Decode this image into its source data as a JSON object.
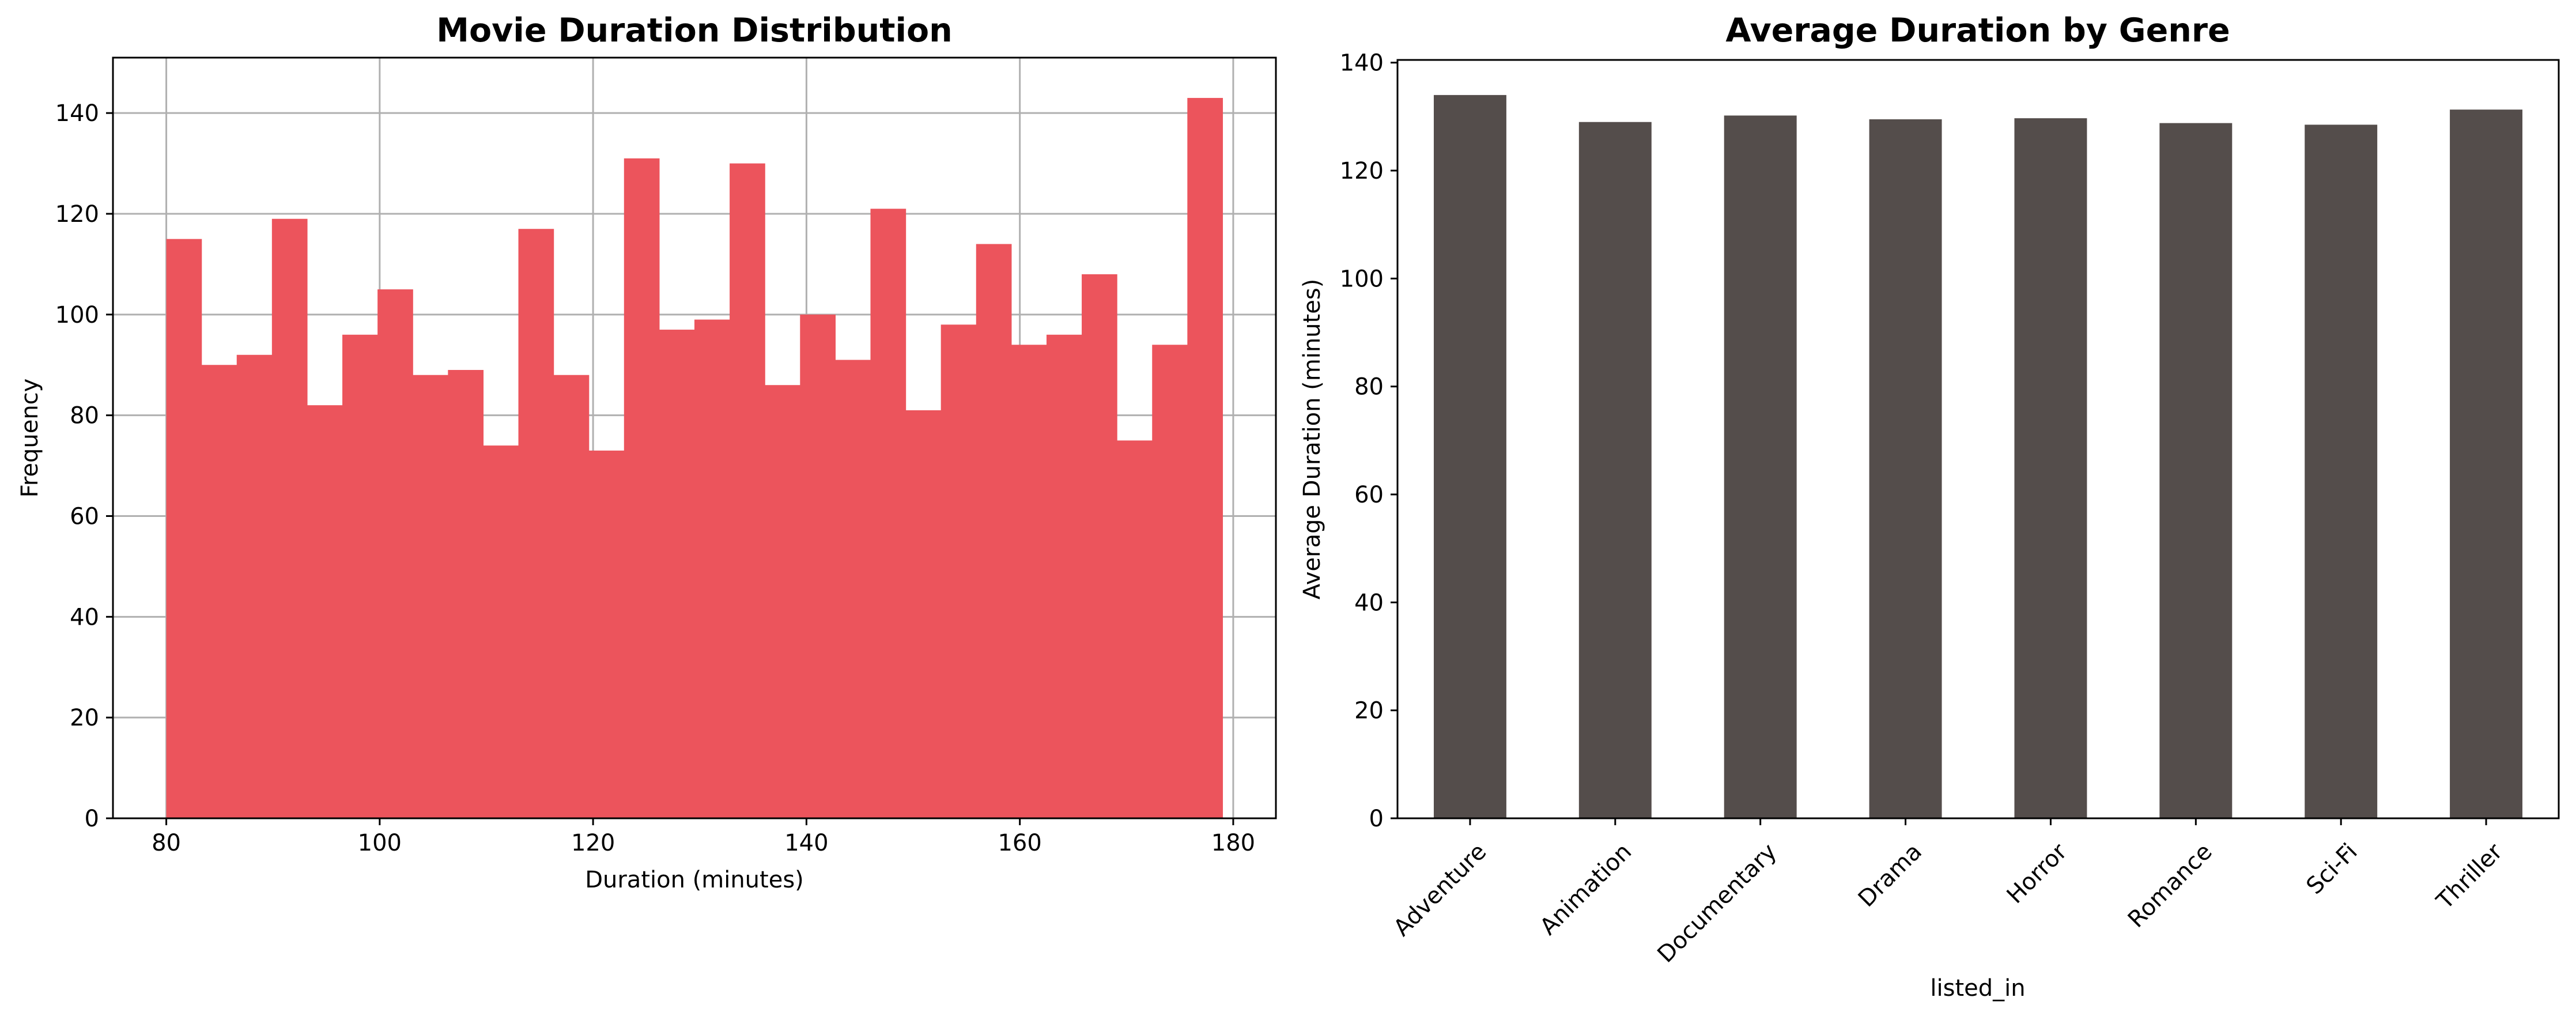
{
  "chart_data": [
    {
      "type": "bar",
      "title": "Movie Duration Distribution",
      "xlabel": "Duration (minutes)",
      "ylabel": "Frequency",
      "xlim": [
        75,
        184
      ],
      "ylim": [
        0,
        151
      ],
      "xticks": [
        80,
        100,
        120,
        140,
        160,
        180
      ],
      "yticks": [
        0,
        20,
        40,
        60,
        80,
        100,
        120,
        140
      ],
      "grid": true,
      "color": "#ec545c",
      "bins": [
        {
          "x0": 80.0,
          "x1": 83.3,
          "value": 115
        },
        {
          "x0": 83.3,
          "x1": 86.6,
          "value": 90
        },
        {
          "x0": 86.6,
          "x1": 89.9,
          "value": 92
        },
        {
          "x0": 89.9,
          "x1": 93.2,
          "value": 119
        },
        {
          "x0": 93.2,
          "x1": 96.5,
          "value": 82
        },
        {
          "x0": 96.5,
          "x1": 99.8,
          "value": 96
        },
        {
          "x0": 99.8,
          "x1": 103.1,
          "value": 105
        },
        {
          "x0": 103.1,
          "x1": 106.4,
          "value": 88
        },
        {
          "x0": 106.4,
          "x1": 109.7,
          "value": 89
        },
        {
          "x0": 109.7,
          "x1": 113.0,
          "value": 74
        },
        {
          "x0": 113.0,
          "x1": 116.3,
          "value": 117
        },
        {
          "x0": 116.3,
          "x1": 119.6,
          "value": 88
        },
        {
          "x0": 119.6,
          "x1": 122.9,
          "value": 73
        },
        {
          "x0": 122.9,
          "x1": 126.2,
          "value": 131
        },
        {
          "x0": 126.2,
          "x1": 129.5,
          "value": 97
        },
        {
          "x0": 129.5,
          "x1": 132.8,
          "value": 99
        },
        {
          "x0": 132.8,
          "x1": 136.1,
          "value": 130
        },
        {
          "x0": 136.1,
          "x1": 139.4,
          "value": 86
        },
        {
          "x0": 139.4,
          "x1": 142.7,
          "value": 100
        },
        {
          "x0": 142.7,
          "x1": 146.0,
          "value": 91
        },
        {
          "x0": 146.0,
          "x1": 149.3,
          "value": 121
        },
        {
          "x0": 149.3,
          "x1": 152.6,
          "value": 81
        },
        {
          "x0": 152.6,
          "x1": 155.9,
          "value": 98
        },
        {
          "x0": 155.9,
          "x1": 159.2,
          "value": 114
        },
        {
          "x0": 159.2,
          "x1": 162.5,
          "value": 94
        },
        {
          "x0": 162.5,
          "x1": 165.8,
          "value": 96
        },
        {
          "x0": 165.8,
          "x1": 169.1,
          "value": 108
        },
        {
          "x0": 169.1,
          "x1": 172.4,
          "value": 75
        },
        {
          "x0": 172.4,
          "x1": 175.7,
          "value": 94
        },
        {
          "x0": 175.7,
          "x1": 179.0,
          "value": 143
        }
      ]
    },
    {
      "type": "bar",
      "title": "Average Duration by Genre",
      "xlabel": "listed_in",
      "ylabel": "Average Duration (minutes)",
      "ylim": [
        0,
        140.5
      ],
      "yticks": [
        0,
        20,
        40,
        60,
        80,
        100,
        120,
        140
      ],
      "grid": false,
      "color": "#544d4b",
      "categories": [
        "Adventure",
        "Animation",
        "Documentary",
        "Drama",
        "Horror",
        "Romance",
        "Sci-Fi",
        "Thriller"
      ],
      "values": [
        134.0,
        129.0,
        130.2,
        129.5,
        129.7,
        128.8,
        128.5,
        131.3
      ]
    }
  ]
}
